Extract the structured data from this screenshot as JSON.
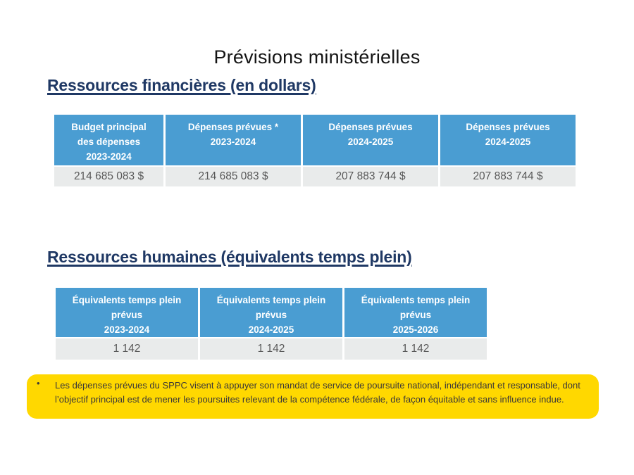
{
  "slide": {
    "title": "Prévisions ministérielles",
    "background_color": "#FFFFFF"
  },
  "financial": {
    "heading": "Ressources financières (en dollars)",
    "table": {
      "headers": [
        "Budget principal\ndes dépenses\n2023-2024",
        "Dépenses prévues *\n2023-2024",
        "Dépenses prévues\n2024-2025",
        "Dépenses prévues\n2024-2025"
      ],
      "values": [
        "214 685 083 $",
        "214 685 083 $",
        "207 883 744 $",
        "207 883 744 $"
      ]
    }
  },
  "human": {
    "heading": "Ressources humaines (équivalents temps plein)",
    "table": {
      "headers": [
        "Équivalents temps plein\nprévus\n2023-2024",
        "Équivalents temps plein\nprévus\n2024-2025",
        "Équivalents temps plein\nprévus\n2025-2026"
      ],
      "values": [
        "1 142",
        "1 142",
        "1 142"
      ]
    }
  },
  "note": {
    "bullet": "•",
    "text": "Les dépenses prévues du SPPC visent à appuyer son mandat de service de poursuite national, indépendant et responsable, dont l’objectif principal est de mener les poursuites relevant de la compétence fédérale, de façon équitable et sans influence indue."
  },
  "colors": {
    "header_blue": "#4A9DD2",
    "row_gray": "#E9EBEB",
    "heading_navy": "#1F3864",
    "note_yellow": "#FFD800",
    "value_text_gray": "#595959"
  }
}
